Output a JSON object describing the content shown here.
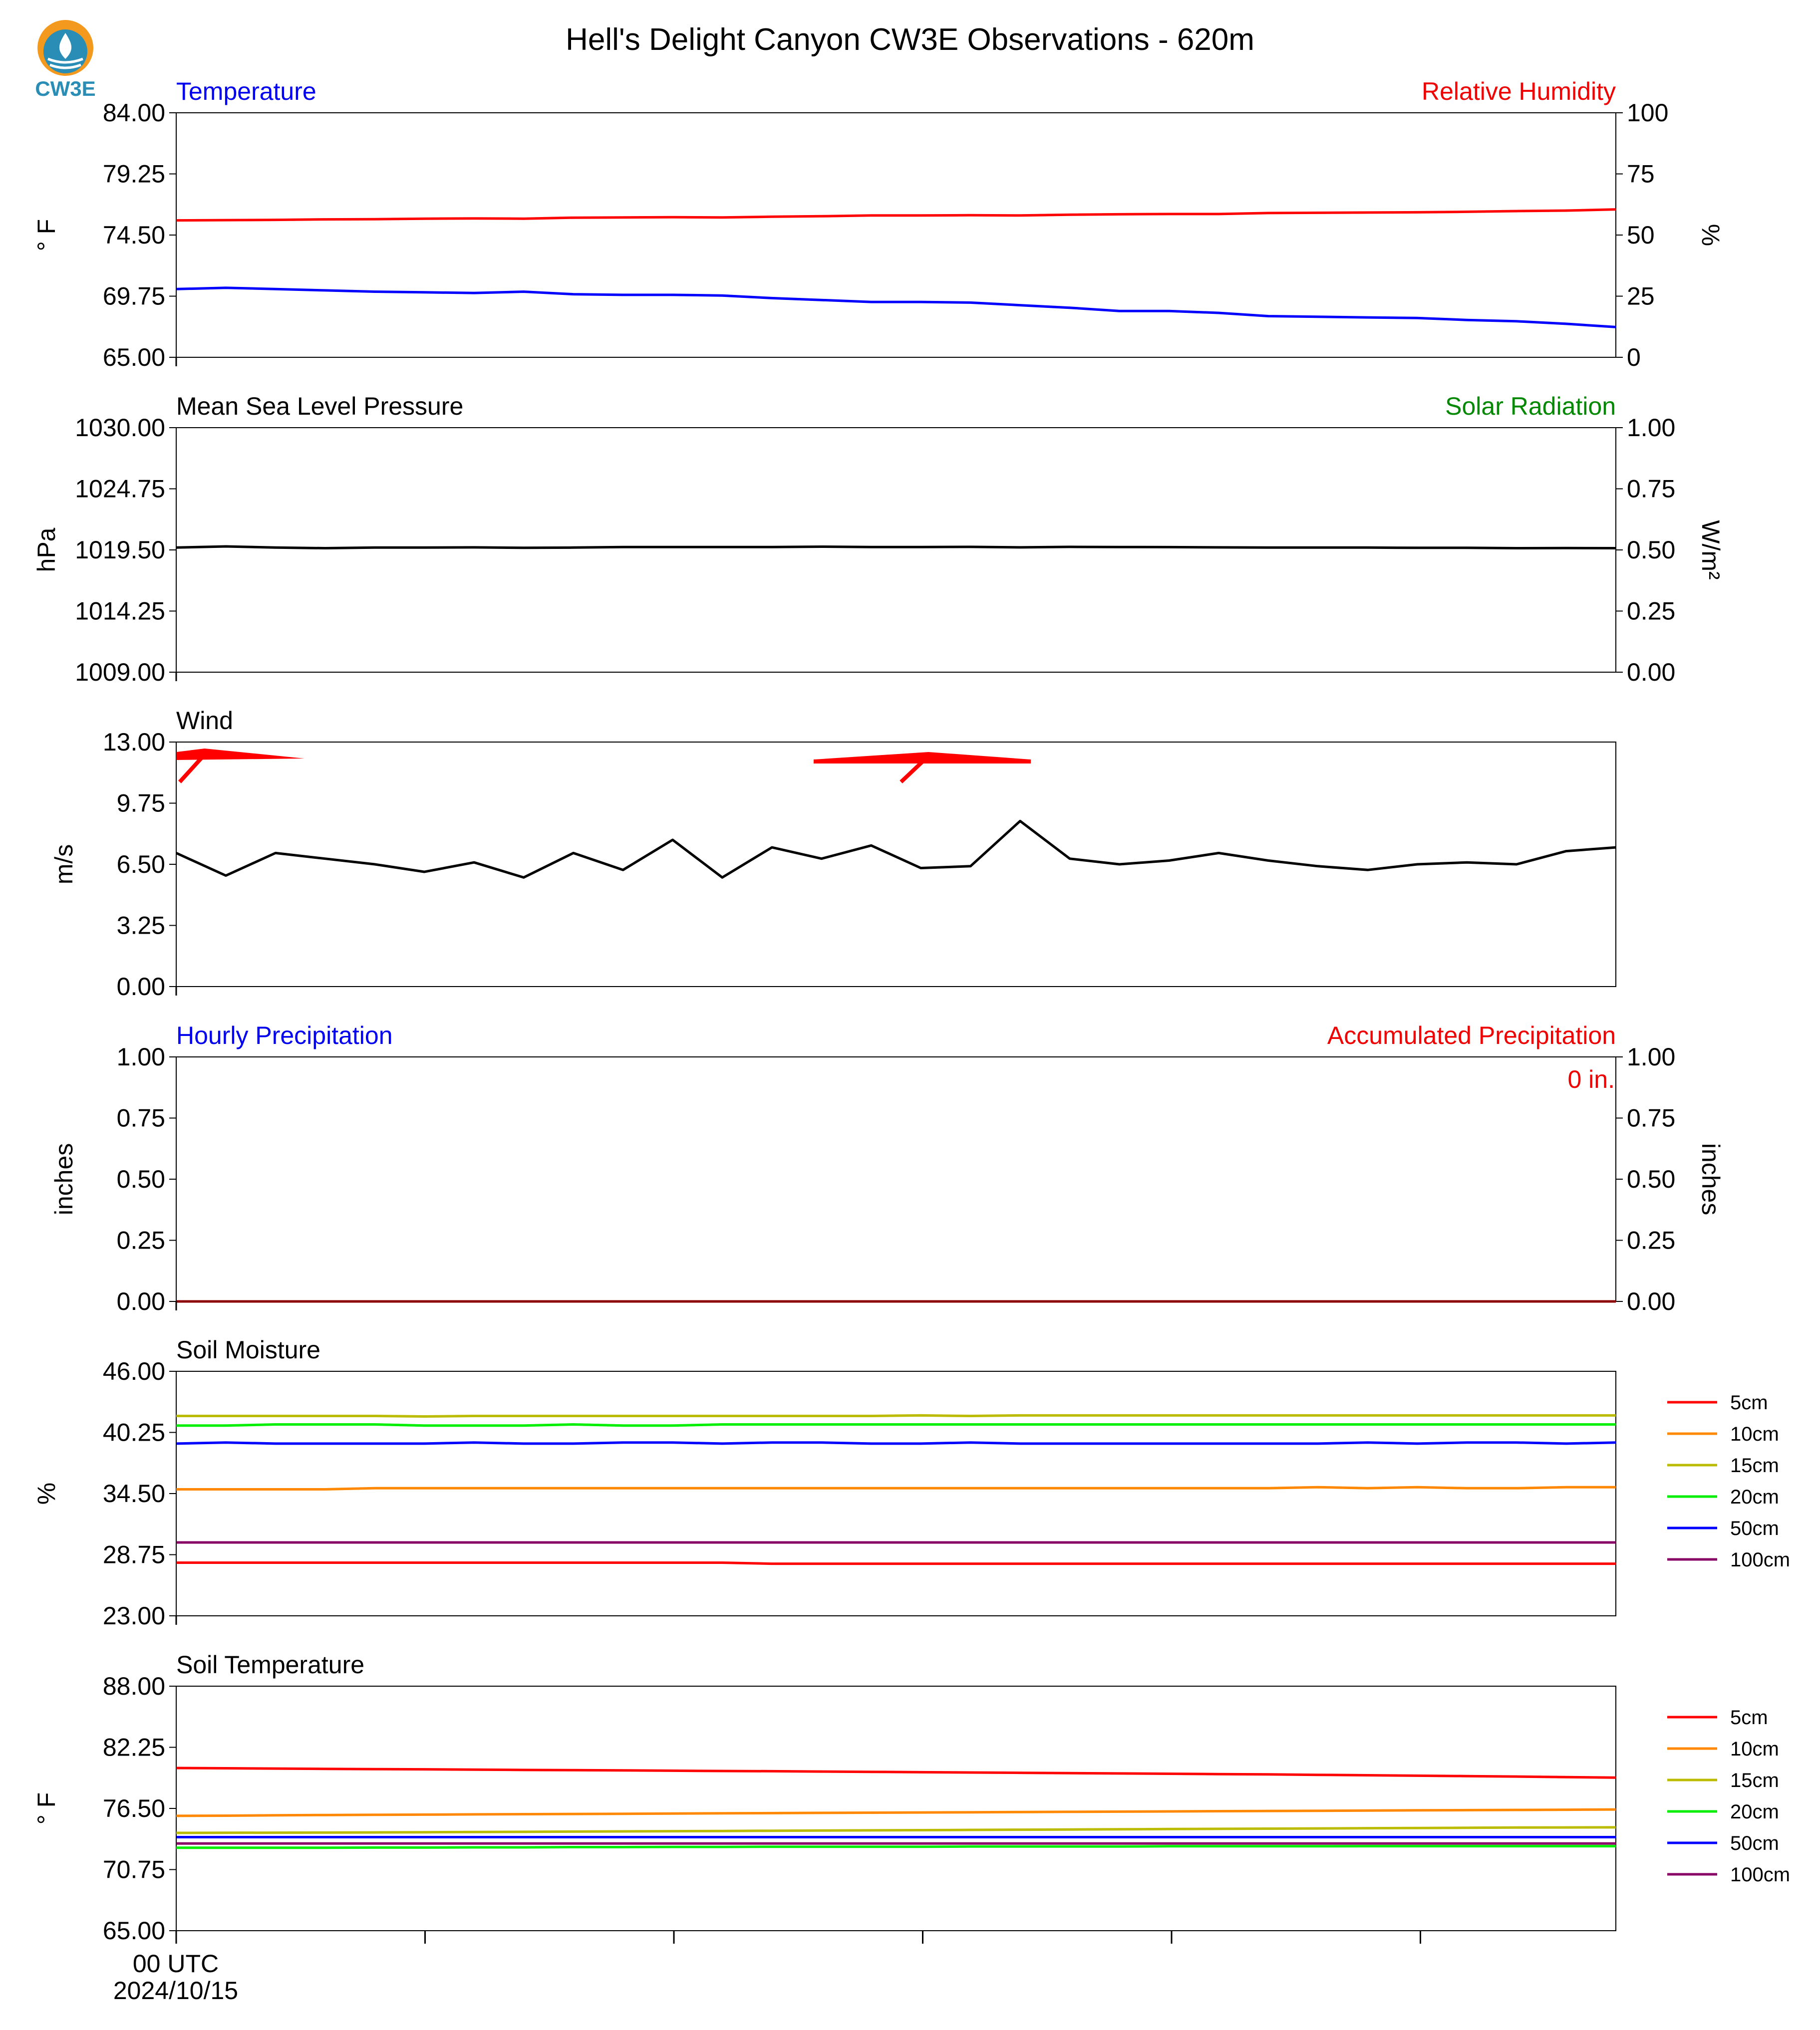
{
  "title": "Hell's Delight Canyon CW3E Observations - 620m",
  "logo_text": "CW3E",
  "x_axis": {
    "start_label": "00 UTC",
    "start_date": "2024/10/15",
    "n_ticks": 6
  },
  "chart_data": [
    {
      "type": "line",
      "title_left": "Temperature",
      "title_right": "Relative Humidity",
      "ylabel": "° F",
      "ylabel_right": "%",
      "ylim": [
        65,
        84
      ],
      "yticks": [
        "84.00",
        "79.25",
        "74.50",
        "69.75",
        "65.00"
      ],
      "ylim_right": [
        0,
        100
      ],
      "yticks_right": [
        "100",
        "75",
        "50",
        "25",
        "0"
      ],
      "colors": {
        "title_left": "#0000ee",
        "title_right": "#ee0000"
      },
      "series": [
        {
          "name": "Temperature",
          "axis": "left",
          "color": "#0000ff",
          "values": [
            70.3,
            70.4,
            70.3,
            70.2,
            70.1,
            70.05,
            70.0,
            70.1,
            69.9,
            69.85,
            69.85,
            69.8,
            69.6,
            69.45,
            69.3,
            69.3,
            69.25,
            69.05,
            68.85,
            68.6,
            68.6,
            68.45,
            68.2,
            68.15,
            68.1,
            68.05,
            67.9,
            67.8,
            67.6,
            67.35
          ]
        },
        {
          "name": "Relative Humidity",
          "axis": "right",
          "color": "#ff0000",
          "values": [
            56.0,
            56.1,
            56.2,
            56.4,
            56.5,
            56.7,
            56.8,
            56.7,
            57.1,
            57.2,
            57.3,
            57.2,
            57.5,
            57.7,
            58.0,
            58.0,
            58.1,
            58.0,
            58.3,
            58.5,
            58.6,
            58.6,
            59.0,
            59.1,
            59.2,
            59.3,
            59.5,
            59.8,
            60.0,
            60.5
          ]
        }
      ]
    },
    {
      "type": "line",
      "title_left": "Mean Sea Level Pressure",
      "title_right": "Solar Radiation",
      "ylabel": "hPa",
      "ylabel_right": "W/m²",
      "ylim": [
        1009,
        1030
      ],
      "yticks": [
        "1030.00",
        "1024.75",
        "1019.50",
        "1014.25",
        "1009.00"
      ],
      "ylim_right": [
        0,
        1
      ],
      "yticks_right": [
        "1.00",
        "0.75",
        "0.50",
        "0.25",
        "0.00"
      ],
      "colors": {
        "title_left": "#000000",
        "title_right": "#008800"
      },
      "series": [
        {
          "name": "Mean Sea Level Pressure",
          "axis": "left",
          "color": "#000000",
          "values": [
            1019.7,
            1019.8,
            1019.7,
            1019.65,
            1019.7,
            1019.7,
            1019.72,
            1019.68,
            1019.7,
            1019.75,
            1019.75,
            1019.75,
            1019.75,
            1019.78,
            1019.75,
            1019.75,
            1019.76,
            1019.72,
            1019.76,
            1019.75,
            1019.74,
            1019.72,
            1019.7,
            1019.7,
            1019.7,
            1019.68,
            1019.68,
            1019.65,
            1019.66,
            1019.65
          ]
        }
      ]
    },
    {
      "type": "line",
      "title_left": "Wind",
      "title_right": "",
      "ylabel": "m/s",
      "ylim": [
        0,
        13
      ],
      "yticks": [
        "13.00",
        "9.75",
        "6.50",
        "3.25",
        "0.00"
      ],
      "colors": {
        "title_left": "#000000",
        "barbs": "#ff0000"
      },
      "series": [
        {
          "name": "Wind Speed",
          "axis": "left",
          "color": "#000000",
          "values": [
            7.1,
            5.9,
            7.1,
            6.8,
            6.5,
            6.1,
            6.6,
            5.8,
            7.1,
            6.2,
            7.8,
            5.8,
            7.4,
            6.8,
            7.5,
            6.3,
            6.4,
            8.8,
            6.8,
            6.5,
            6.7,
            7.1,
            6.7,
            6.4,
            6.2,
            6.5,
            6.6,
            6.5,
            7.2,
            7.4
          ]
        }
      ]
    },
    {
      "type": "line",
      "title_left": "Hourly Precipitation",
      "title_right": "Accumulated Precipitation",
      "ylabel": "inches",
      "ylabel_right": "inches",
      "ylim": [
        0,
        1
      ],
      "yticks": [
        "1.00",
        "0.75",
        "0.50",
        "0.25",
        "0.00"
      ],
      "ylim_right": [
        0,
        1
      ],
      "yticks_right": [
        "1.00",
        "0.75",
        "0.50",
        "0.25",
        "0.00"
      ],
      "annotation": "0 in.",
      "colors": {
        "title_left": "#0000ee",
        "title_right": "#ee0000"
      },
      "series": [
        {
          "name": "Hourly Precipitation",
          "axis": "left",
          "color": "#0000ff",
          "values": [
            0,
            0,
            0,
            0,
            0,
            0,
            0,
            0,
            0,
            0,
            0,
            0,
            0,
            0,
            0,
            0,
            0,
            0,
            0,
            0,
            0,
            0,
            0,
            0,
            0,
            0,
            0,
            0,
            0,
            0
          ]
        },
        {
          "name": "Accumulated Precipitation",
          "axis": "right",
          "color": "#8b0000",
          "values": [
            0,
            0,
            0,
            0,
            0,
            0,
            0,
            0,
            0,
            0,
            0,
            0,
            0,
            0,
            0,
            0,
            0,
            0,
            0,
            0,
            0,
            0,
            0,
            0,
            0,
            0,
            0,
            0,
            0,
            0
          ]
        }
      ]
    },
    {
      "type": "line",
      "title_left": "Soil Moisture",
      "title_right": "",
      "ylabel": "%",
      "ylim": [
        23,
        46
      ],
      "yticks": [
        "46.00",
        "40.25",
        "34.50",
        "28.75",
        "23.00"
      ],
      "colors": {
        "title_left": "#000000"
      },
      "series": [
        {
          "name": "5cm",
          "color": "#ff0000",
          "values": [
            28.0,
            28.0,
            28.0,
            28.0,
            28.0,
            28.0,
            28.0,
            28.0,
            28.0,
            28.0,
            28.0,
            28.0,
            27.9,
            27.9,
            27.9,
            27.9,
            27.9,
            27.9,
            27.9,
            27.9,
            27.9,
            27.9,
            27.9,
            27.9,
            27.9,
            27.9,
            27.9,
            27.9,
            27.9,
            27.9
          ]
        },
        {
          "name": "10cm",
          "color": "#ff8800",
          "values": [
            34.9,
            34.9,
            34.9,
            34.9,
            35.0,
            35.0,
            35.0,
            35.0,
            35.0,
            35.0,
            35.0,
            35.0,
            35.0,
            35.0,
            35.0,
            35.0,
            35.0,
            35.0,
            35.0,
            35.0,
            35.0,
            35.0,
            35.0,
            35.1,
            35.0,
            35.1,
            35.0,
            35.0,
            35.1,
            35.1
          ]
        },
        {
          "name": "15cm",
          "color": "#bbbb00",
          "values": [
            41.8,
            41.8,
            41.8,
            41.8,
            41.8,
            41.75,
            41.8,
            41.8,
            41.8,
            41.8,
            41.8,
            41.8,
            41.8,
            41.8,
            41.8,
            41.85,
            41.8,
            41.85,
            41.85,
            41.85,
            41.85,
            41.85,
            41.85,
            41.85,
            41.85,
            41.85,
            41.85,
            41.85,
            41.85,
            41.85
          ]
        },
        {
          "name": "20cm",
          "color": "#00ee00",
          "values": [
            40.9,
            40.9,
            41.0,
            41.0,
            41.0,
            40.9,
            40.9,
            40.9,
            41.0,
            40.9,
            40.9,
            41.0,
            41.0,
            41.0,
            41.0,
            41.0,
            41.0,
            41.0,
            41.0,
            41.0,
            41.0,
            41.0,
            41.0,
            41.0,
            41.0,
            41.0,
            41.0,
            41.0,
            41.0,
            41.0
          ]
        },
        {
          "name": "50cm",
          "color": "#0000ff",
          "values": [
            39.2,
            39.3,
            39.2,
            39.2,
            39.2,
            39.2,
            39.3,
            39.2,
            39.2,
            39.3,
            39.3,
            39.2,
            39.3,
            39.3,
            39.2,
            39.2,
            39.3,
            39.2,
            39.2,
            39.2,
            39.2,
            39.2,
            39.2,
            39.2,
            39.3,
            39.2,
            39.3,
            39.3,
            39.2,
            39.3
          ]
        },
        {
          "name": "100cm",
          "color": "#880066",
          "values": [
            29.9,
            29.9,
            29.9,
            29.9,
            29.9,
            29.9,
            29.9,
            29.9,
            29.9,
            29.9,
            29.9,
            29.9,
            29.9,
            29.9,
            29.9,
            29.9,
            29.9,
            29.9,
            29.9,
            29.9,
            29.9,
            29.9,
            29.9,
            29.9,
            29.9,
            29.9,
            29.9,
            29.9,
            29.9,
            29.9
          ]
        }
      ]
    },
    {
      "type": "line",
      "title_left": "Soil Temperature",
      "title_right": "",
      "ylabel": "° F",
      "ylim": [
        65,
        88
      ],
      "yticks": [
        "88.00",
        "82.25",
        "76.50",
        "70.75",
        "65.00"
      ],
      "colors": {
        "title_left": "#000000"
      },
      "series": [
        {
          "name": "5cm",
          "color": "#ff0000",
          "values": [
            80.3,
            80.28,
            80.25,
            80.22,
            80.2,
            80.18,
            80.15,
            80.12,
            80.1,
            80.08,
            80.05,
            80.02,
            80.0,
            79.97,
            79.94,
            79.91,
            79.88,
            79.85,
            79.82,
            79.79,
            79.76,
            79.73,
            79.7,
            79.66,
            79.62,
            79.58,
            79.54,
            79.5,
            79.45,
            79.4
          ]
        },
        {
          "name": "10cm",
          "color": "#ff8800",
          "values": [
            75.8,
            75.82,
            75.85,
            75.88,
            75.9,
            75.92,
            75.94,
            75.96,
            75.98,
            76.0,
            76.02,
            76.04,
            76.06,
            76.08,
            76.1,
            76.12,
            76.14,
            76.16,
            76.18,
            76.2,
            76.22,
            76.24,
            76.26,
            76.28,
            76.3,
            76.32,
            76.34,
            76.36,
            76.38,
            76.4
          ]
        },
        {
          "name": "15cm",
          "color": "#bbbb00",
          "values": [
            74.2,
            74.21,
            74.22,
            74.23,
            74.24,
            74.26,
            74.28,
            74.3,
            74.32,
            74.34,
            74.36,
            74.38,
            74.4,
            74.42,
            74.44,
            74.46,
            74.48,
            74.5,
            74.52,
            74.54,
            74.56,
            74.58,
            74.6,
            74.62,
            74.64,
            74.66,
            74.68,
            74.7,
            74.71,
            74.72
          ]
        },
        {
          "name": "20cm",
          "color": "#00ee00",
          "values": [
            72.8,
            72.8,
            72.8,
            72.8,
            72.82,
            72.82,
            72.84,
            72.84,
            72.86,
            72.86,
            72.88,
            72.88,
            72.9,
            72.9,
            72.9,
            72.9,
            72.92,
            72.92,
            72.92,
            72.92,
            72.94,
            72.94,
            72.94,
            72.94,
            72.95,
            72.95,
            72.95,
            72.95,
            72.95,
            72.95
          ]
        },
        {
          "name": "50cm",
          "color": "#0000ff",
          "values": [
            73.8,
            73.8,
            73.8,
            73.8,
            73.8,
            73.8,
            73.8,
            73.8,
            73.8,
            73.8,
            73.8,
            73.8,
            73.8,
            73.8,
            73.8,
            73.8,
            73.8,
            73.8,
            73.8,
            73.8,
            73.8,
            73.8,
            73.8,
            73.8,
            73.8,
            73.8,
            73.8,
            73.8,
            73.8,
            73.8
          ]
        },
        {
          "name": "100cm",
          "color": "#880066",
          "values": [
            73.2,
            73.2,
            73.2,
            73.2,
            73.2,
            73.2,
            73.2,
            73.2,
            73.2,
            73.2,
            73.2,
            73.2,
            73.2,
            73.2,
            73.2,
            73.2,
            73.2,
            73.2,
            73.2,
            73.2,
            73.2,
            73.2,
            73.2,
            73.2,
            73.2,
            73.2,
            73.2,
            73.2,
            73.2,
            73.2
          ]
        }
      ]
    }
  ]
}
